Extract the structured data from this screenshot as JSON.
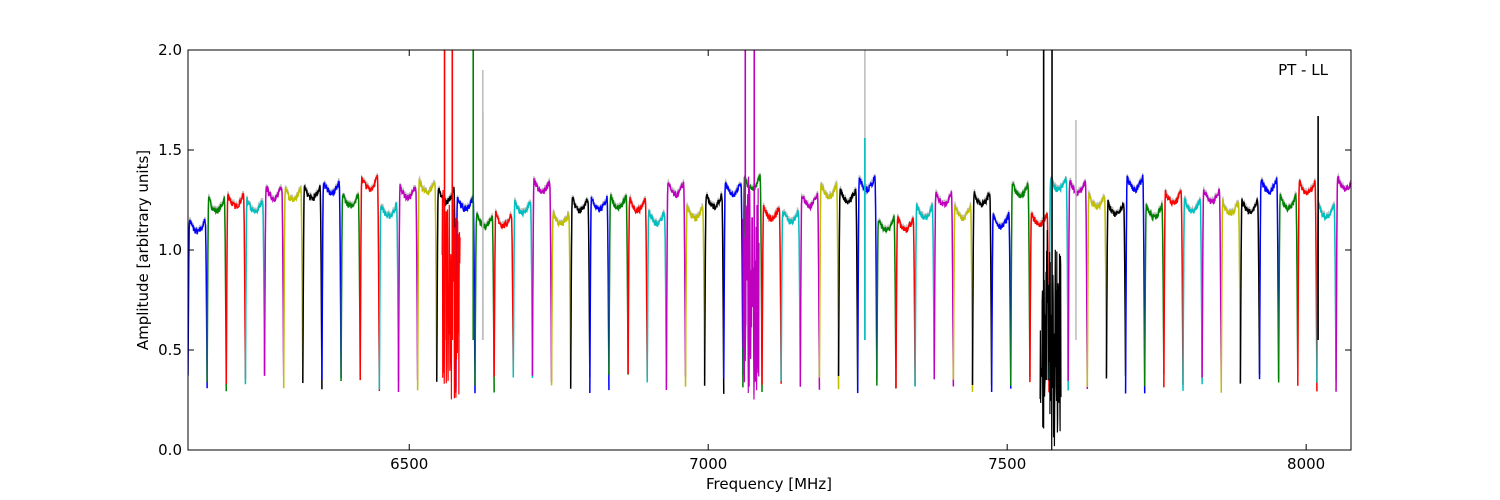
{
  "chart_data": {
    "type": "line",
    "title": "",
    "annotation": "PT - LL",
    "xlabel": "Frequency [MHz]",
    "ylabel": "Amplitude [arbitrary units]",
    "xlim": [
      6130,
      8075
    ],
    "ylim": [
      0.0,
      2.0
    ],
    "xticks": [
      6500,
      7000,
      7500,
      8000
    ],
    "xtick_labels": [
      "6500",
      "7000",
      "7500",
      "8000"
    ],
    "yticks": [
      0.0,
      0.5,
      1.0,
      1.5,
      2.0
    ],
    "ytick_labels": [
      "0.0",
      "0.5",
      "1.0",
      "1.5",
      "2.0"
    ],
    "grid": false,
    "raw_color": "#bfbfbf",
    "sub_band": {
      "width_mhz": 32,
      "start_mhz": 6130,
      "edge_min": 0.3,
      "peak_range": [
        1.15,
        1.38
      ]
    },
    "color_cycle": [
      "#0000ff",
      "#008000",
      "#ff0000",
      "#00bfbf",
      "#bf00bf",
      "#bfbf00",
      "#000000"
    ],
    "spikes": [
      {
        "x": 6559,
        "y": 2.0,
        "color": "#ff0000"
      },
      {
        "x": 6572,
        "y": 2.0,
        "color": "#ff0000"
      },
      {
        "x": 6607,
        "y": 2.0,
        "color": "#008000"
      },
      {
        "x": 6623,
        "y": 1.69,
        "color": "#008000"
      },
      {
        "x": 6623,
        "y": 1.9,
        "color": "#bfbfbf"
      },
      {
        "x": 7062,
        "y": 2.0,
        "color": "#bf00bf"
      },
      {
        "x": 7077,
        "y": 2.0,
        "color": "#bf00bf"
      },
      {
        "x": 7262,
        "y": 2.0,
        "color": "#bfbfbf"
      },
      {
        "x": 7262,
        "y": 1.56,
        "color": "#00bfbf"
      },
      {
        "x": 7561,
        "y": 2.0,
        "color": "#000000"
      },
      {
        "x": 7575,
        "y": 2.0,
        "color": "#000000"
      },
      {
        "x": 7615,
        "y": 1.65,
        "color": "#bfbfbf"
      },
      {
        "x": 8020,
        "y": 1.67,
        "color": "#000000"
      }
    ],
    "noisy_regions": [
      {
        "x_min": 6555,
        "x_max": 6585,
        "y_min": 0.22,
        "y_max": 1.3,
        "color": "#ff0000"
      },
      {
        "x_min": 7058,
        "x_max": 7085,
        "y_min": 0.22,
        "y_max": 1.38,
        "color": "#bf00bf"
      },
      {
        "x_min": 7555,
        "x_max": 7590,
        "y_min": 0.0,
        "y_max": 1.1,
        "color": "#000000"
      }
    ]
  }
}
